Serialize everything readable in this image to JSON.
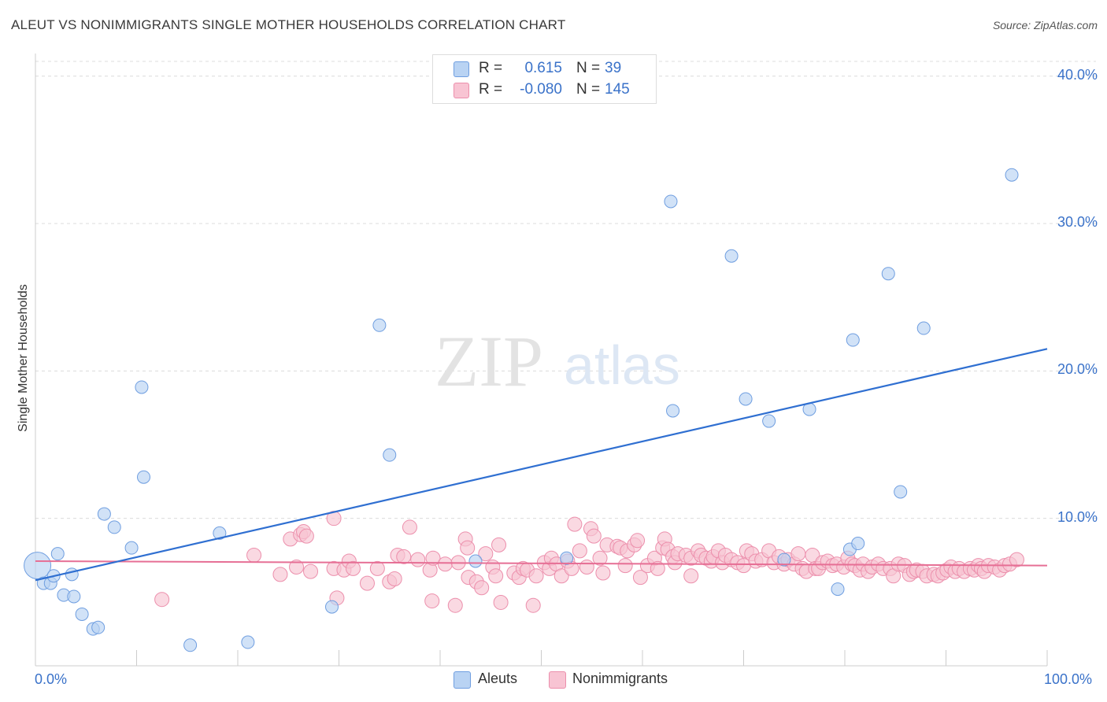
{
  "title": "ALEUT VS NONIMMIGRANTS SINGLE MOTHER HOUSEHOLDS CORRELATION CHART",
  "source": "Source: ZipAtlas.com",
  "watermark": {
    "zip": "ZIP",
    "atlas": "atlas"
  },
  "colors": {
    "aleut_fill": "#b9d3f3",
    "aleut_stroke": "#6f9ee0",
    "aleut_line": "#2f6fd1",
    "nonimm_fill": "#f8c4d3",
    "nonimm_stroke": "#ec8fac",
    "nonimm_line": "#e66f95",
    "grid": "#dcdcdc",
    "axis_text": "#3a72c9"
  },
  "legend_top": {
    "rows": [
      {
        "r_label": "R =",
        "r_value": "0.615",
        "n_label": "N =",
        "n_value": "39"
      },
      {
        "r_label": "R =",
        "r_value": "-0.080",
        "n_label": "N =",
        "n_value": "145"
      }
    ]
  },
  "legend_bottom": {
    "aleut": "Aleuts",
    "nonimm": "Nonimmigrants"
  },
  "chart_data": {
    "type": "scatter",
    "title": "ALEUT VS NONIMMIGRANTS SINGLE MOTHER HOUSEHOLDS CORRELATION CHART",
    "xlabel": "",
    "ylabel": "Single Mother Households",
    "xlim": [
      0,
      100
    ],
    "ylim": [
      0,
      41
    ],
    "x_tick_labels": [
      "0.0%",
      "100.0%"
    ],
    "y_ticks": [
      10,
      20,
      30,
      40
    ],
    "y_tick_labels": [
      "10.0%",
      "20.0%",
      "30.0%",
      "40.0%"
    ],
    "grid": true,
    "series": [
      {
        "name": "Aleuts",
        "r": 0.615,
        "n": 39,
        "trend": {
          "x": [
            0,
            100
          ],
          "y": [
            5.8,
            21.5
          ]
        },
        "points": [
          [
            0.2,
            6.8
          ],
          [
            0.8,
            5.6
          ],
          [
            1.5,
            5.6
          ],
          [
            1.8,
            6.1
          ],
          [
            2.2,
            7.6
          ],
          [
            2.8,
            4.8
          ],
          [
            3.6,
            6.2
          ],
          [
            3.8,
            4.7
          ],
          [
            4.6,
            3.5
          ],
          [
            5.7,
            2.5
          ],
          [
            6.2,
            2.6
          ],
          [
            6.8,
            10.3
          ],
          [
            7.8,
            9.4
          ],
          [
            9.5,
            8.0
          ],
          [
            10.5,
            18.9
          ],
          [
            10.7,
            12.8
          ],
          [
            15.3,
            1.4
          ],
          [
            18.2,
            9.0
          ],
          [
            21.0,
            1.6
          ],
          [
            29.3,
            4.0
          ],
          [
            34.0,
            23.1
          ],
          [
            35.0,
            14.3
          ],
          [
            43.5,
            7.1
          ],
          [
            52.5,
            7.3
          ],
          [
            62.8,
            31.5
          ],
          [
            63.0,
            17.3
          ],
          [
            68.8,
            27.8
          ],
          [
            70.2,
            18.1
          ],
          [
            72.5,
            16.6
          ],
          [
            74.0,
            7.2
          ],
          [
            76.5,
            17.4
          ],
          [
            79.3,
            5.2
          ],
          [
            80.5,
            7.9
          ],
          [
            80.8,
            22.1
          ],
          [
            81.3,
            8.3
          ],
          [
            84.3,
            26.6
          ],
          [
            85.5,
            11.8
          ],
          [
            87.8,
            22.9
          ],
          [
            96.5,
            33.3
          ]
        ]
      },
      {
        "name": "Nonimmigrants",
        "r": -0.08,
        "n": 145,
        "trend": {
          "x": [
            0,
            100
          ],
          "y": [
            7.1,
            6.8
          ]
        },
        "points": [
          [
            12.5,
            4.5
          ],
          [
            21.6,
            7.5
          ],
          [
            24.2,
            6.2
          ],
          [
            25.2,
            8.6
          ],
          [
            25.8,
            6.7
          ],
          [
            26.2,
            8.9
          ],
          [
            26.5,
            9.1
          ],
          [
            26.8,
            8.8
          ],
          [
            27.2,
            6.4
          ],
          [
            29.5,
            10.0
          ],
          [
            29.5,
            6.6
          ],
          [
            29.8,
            4.6
          ],
          [
            30.5,
            6.5
          ],
          [
            31.0,
            7.1
          ],
          [
            31.4,
            6.6
          ],
          [
            32.8,
            5.6
          ],
          [
            33.8,
            6.6
          ],
          [
            35.0,
            5.7
          ],
          [
            35.5,
            5.9
          ],
          [
            35.8,
            7.5
          ],
          [
            36.4,
            7.4
          ],
          [
            37.0,
            9.4
          ],
          [
            37.8,
            7.2
          ],
          [
            39.0,
            6.5
          ],
          [
            39.2,
            4.4
          ],
          [
            39.3,
            7.3
          ],
          [
            40.5,
            6.9
          ],
          [
            41.5,
            4.1
          ],
          [
            41.8,
            7.0
          ],
          [
            42.5,
            8.6
          ],
          [
            42.7,
            8.0
          ],
          [
            42.8,
            6.0
          ],
          [
            43.6,
            5.7
          ],
          [
            44.1,
            5.3
          ],
          [
            44.5,
            7.6
          ],
          [
            45.2,
            6.7
          ],
          [
            45.5,
            6.1
          ],
          [
            45.8,
            8.2
          ],
          [
            46.0,
            4.3
          ],
          [
            47.3,
            6.3
          ],
          [
            47.8,
            6.0
          ],
          [
            48.2,
            6.6
          ],
          [
            48.6,
            6.5
          ],
          [
            49.2,
            4.1
          ],
          [
            49.5,
            6.1
          ],
          [
            50.3,
            7.0
          ],
          [
            50.8,
            6.6
          ],
          [
            51.0,
            7.3
          ],
          [
            51.5,
            6.9
          ],
          [
            52.0,
            6.1
          ],
          [
            52.6,
            7.1
          ],
          [
            53.0,
            6.6
          ],
          [
            53.3,
            9.6
          ],
          [
            53.8,
            7.8
          ],
          [
            54.5,
            6.7
          ],
          [
            54.9,
            9.3
          ],
          [
            55.2,
            8.8
          ],
          [
            55.8,
            7.3
          ],
          [
            56.1,
            6.3
          ],
          [
            56.5,
            8.2
          ],
          [
            57.5,
            8.1
          ],
          [
            57.8,
            8.0
          ],
          [
            58.3,
            6.8
          ],
          [
            58.5,
            7.8
          ],
          [
            59.2,
            8.2
          ],
          [
            59.5,
            8.5
          ],
          [
            59.8,
            6.0
          ],
          [
            60.5,
            6.8
          ],
          [
            61.2,
            7.3
          ],
          [
            61.5,
            6.6
          ],
          [
            62.0,
            8.0
          ],
          [
            62.2,
            8.6
          ],
          [
            62.5,
            7.9
          ],
          [
            63.0,
            7.4
          ],
          [
            63.2,
            7.0
          ],
          [
            63.5,
            7.6
          ],
          [
            64.3,
            7.5
          ],
          [
            64.8,
            7.3
          ],
          [
            64.8,
            6.1
          ],
          [
            65.5,
            7.8
          ],
          [
            65.8,
            7.5
          ],
          [
            66.3,
            7.3
          ],
          [
            66.8,
            7.1
          ],
          [
            67.0,
            7.4
          ],
          [
            67.5,
            7.8
          ],
          [
            67.9,
            7.0
          ],
          [
            68.2,
            7.5
          ],
          [
            68.8,
            7.2
          ],
          [
            69.4,
            7.0
          ],
          [
            70.0,
            6.8
          ],
          [
            70.3,
            7.8
          ],
          [
            70.8,
            7.6
          ],
          [
            71.2,
            7.1
          ],
          [
            71.8,
            7.2
          ],
          [
            72.5,
            7.8
          ],
          [
            73.0,
            7.0
          ],
          [
            73.5,
            7.4
          ],
          [
            74.0,
            6.9
          ],
          [
            74.4,
            7.2
          ],
          [
            75.0,
            6.9
          ],
          [
            75.4,
            7.6
          ],
          [
            75.8,
            6.6
          ],
          [
            76.2,
            6.4
          ],
          [
            76.8,
            7.5
          ],
          [
            77.1,
            6.6
          ],
          [
            77.4,
            6.6
          ],
          [
            77.8,
            7.0
          ],
          [
            78.3,
            7.1
          ],
          [
            78.8,
            6.8
          ],
          [
            79.2,
            6.9
          ],
          [
            79.9,
            6.7
          ],
          [
            80.3,
            7.3
          ],
          [
            80.7,
            6.9
          ],
          [
            81.0,
            6.8
          ],
          [
            81.5,
            6.5
          ],
          [
            81.8,
            6.9
          ],
          [
            82.3,
            6.4
          ],
          [
            82.7,
            6.7
          ],
          [
            83.3,
            6.9
          ],
          [
            83.8,
            6.6
          ],
          [
            84.5,
            6.6
          ],
          [
            84.8,
            6.1
          ],
          [
            85.3,
            6.9
          ],
          [
            85.9,
            6.8
          ],
          [
            86.4,
            6.2
          ],
          [
            86.8,
            6.4
          ],
          [
            87.1,
            6.5
          ],
          [
            87.7,
            6.4
          ],
          [
            88.1,
            6.1
          ],
          [
            88.8,
            6.2
          ],
          [
            89.2,
            6.1
          ],
          [
            89.7,
            6.3
          ],
          [
            90.1,
            6.5
          ],
          [
            90.5,
            6.7
          ],
          [
            90.9,
            6.4
          ],
          [
            91.3,
            6.6
          ],
          [
            91.8,
            6.4
          ],
          [
            92.4,
            6.6
          ],
          [
            92.8,
            6.5
          ],
          [
            93.2,
            6.8
          ],
          [
            93.5,
            6.6
          ],
          [
            93.8,
            6.4
          ],
          [
            94.2,
            6.8
          ],
          [
            94.8,
            6.7
          ],
          [
            95.3,
            6.5
          ],
          [
            95.8,
            6.8
          ],
          [
            96.3,
            6.9
          ],
          [
            97.0,
            7.2
          ]
        ]
      }
    ]
  }
}
